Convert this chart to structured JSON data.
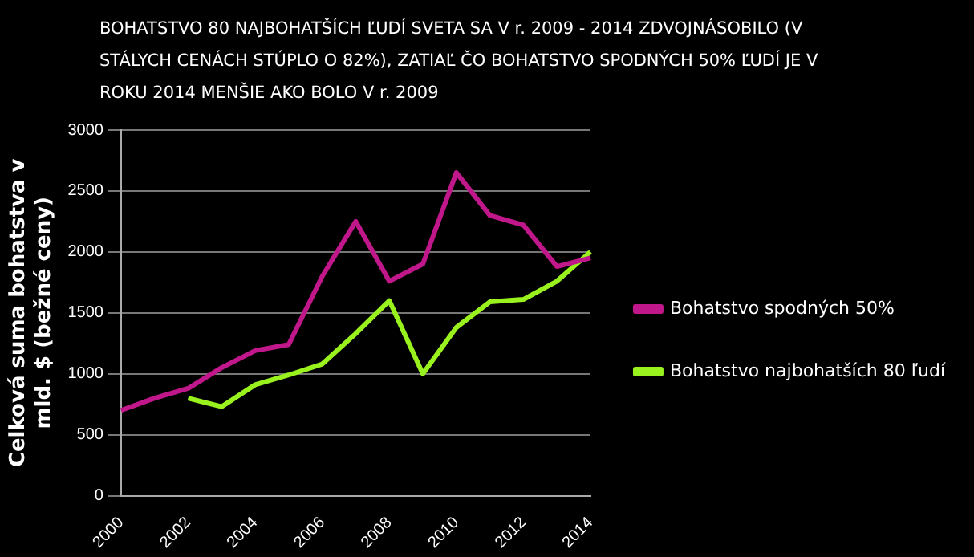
{
  "chart_data": {
    "type": "line",
    "title": "BOHATSTVO 80 NAJBOHATŠÍCH ĽUDÍ SVETA SA V r. 2009 - 2014 ZDVOJNÁSOBILO (V STÁLYCH CENÁCH STÚPLO O 82%), ZATIAĽ ČO BOHATSTVO SPODNÝCH 50% ĽUDÍ JE V ROKU 2014 MENŠIE AKO BOLO V r. 2009",
    "ylabel": "Celková suma bohatstva v mld. $ (bežné ceny)",
    "categories": [
      "2000",
      null,
      "2002",
      null,
      "2004",
      null,
      "2006",
      null,
      "2008",
      null,
      "2010",
      null,
      "2012",
      null,
      "2014"
    ],
    "series": [
      {
        "name": "Bohatstvo spodných 50%",
        "color": "#c0178a",
        "values": [
          700,
          800,
          880,
          1050,
          1190,
          1240,
          1800,
          2250,
          1760,
          1900,
          2650,
          2300,
          2220,
          1880,
          1950
        ]
      },
      {
        "name": "Bohatstvo najbohatších 80 ľudí",
        "color": "#99f21d",
        "values": [
          null,
          null,
          800,
          730,
          910,
          990,
          1080,
          1330,
          1600,
          1000,
          1380,
          1590,
          1610,
          1760,
          2000
        ]
      }
    ],
    "ylim": [
      0,
      3000
    ],
    "yticks": [
      0,
      500,
      1000,
      1500,
      2000,
      2500,
      3000
    ],
    "grid": "y",
    "legend": "right",
    "marker": "none"
  }
}
